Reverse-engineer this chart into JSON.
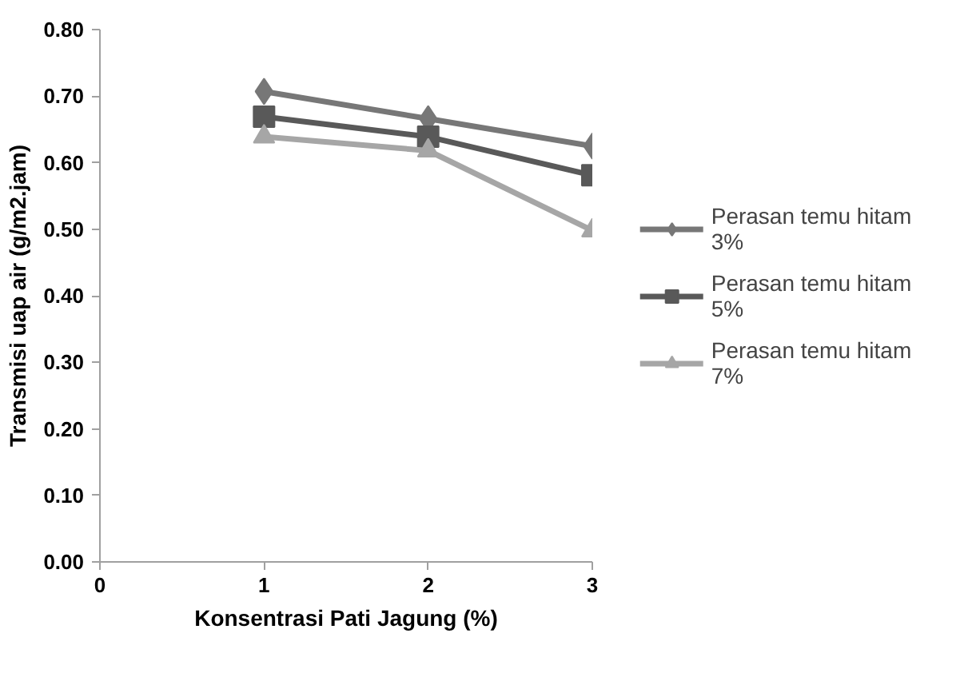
{
  "chart_data": {
    "type": "line",
    "xlabel": "Konsentrasi Pati Jagung (%)",
    "ylabel": "Transmisi uap air (g/m2.jam)",
    "x": [
      1,
      2,
      3
    ],
    "series": [
      {
        "name": "Perasan temu hitam 3%",
        "color": "#777777",
        "marker": "diamond",
        "values": [
          0.707,
          0.666,
          0.625
        ]
      },
      {
        "name": "Perasan temu hitam 5%",
        "color": "#595959",
        "marker": "square",
        "values": [
          0.669,
          0.639,
          0.581
        ]
      },
      {
        "name": "Perasan temu hitam 7%",
        "color": "#a6a6a6",
        "marker": "triangle",
        "values": [
          0.639,
          0.618,
          0.498
        ]
      }
    ],
    "xlim": [
      0,
      3
    ],
    "xticks": [
      0,
      1,
      2,
      3
    ],
    "ylim": [
      0,
      0.8
    ],
    "yticks": [
      {
        "value": 0,
        "label": "0.00"
      },
      {
        "value": 0.1,
        "label": "0.10"
      },
      {
        "value": 0.2,
        "label": "0.20"
      },
      {
        "value": 0.3,
        "label": "0.30"
      },
      {
        "value": 0.4,
        "label": "0.40"
      },
      {
        "value": 0.5,
        "label": "0.50"
      },
      {
        "value": 0.6,
        "label": "0.60"
      },
      {
        "value": 0.7,
        "label": "0.70"
      },
      {
        "value": 0.8,
        "label": "0.80"
      }
    ],
    "grid": false,
    "legend": "right"
  }
}
